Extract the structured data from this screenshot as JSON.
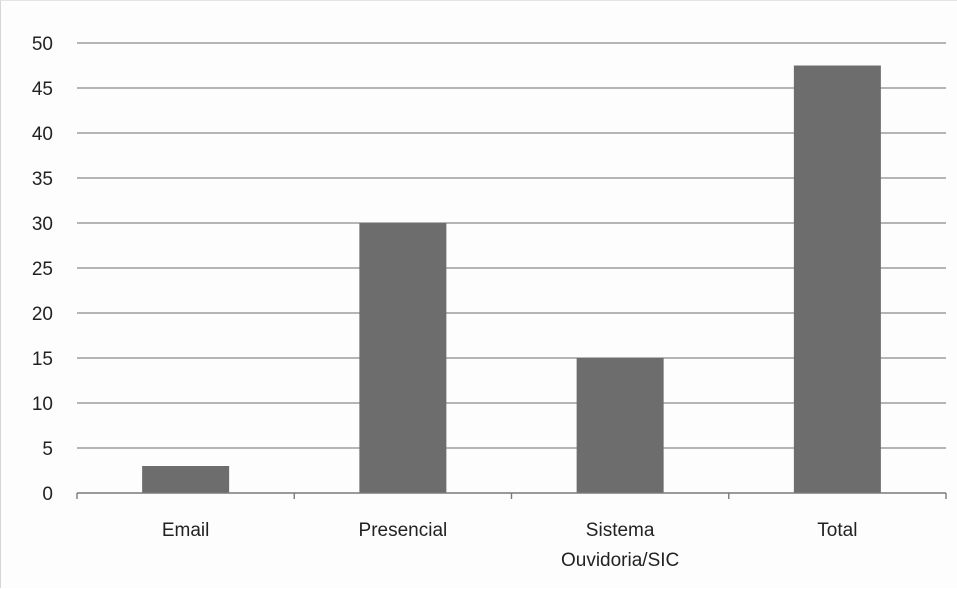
{
  "chart_data": {
    "type": "bar",
    "title": "",
    "xlabel": "",
    "ylabel": "",
    "categories": [
      [
        "Email"
      ],
      [
        "Presencial"
      ],
      [
        "Sistema",
        "Ouvidoria/SIC"
      ],
      [
        "Total"
      ]
    ],
    "values": [
      3,
      30,
      15,
      47.5
    ],
    "ylim": [
      0,
      50
    ],
    "yticks": [
      "0",
      "5",
      "10",
      "15",
      "20",
      "25",
      "30",
      "35",
      "40",
      "45",
      "50"
    ],
    "grid": true,
    "legend": "none",
    "bar_color": "#6d6d6d"
  }
}
